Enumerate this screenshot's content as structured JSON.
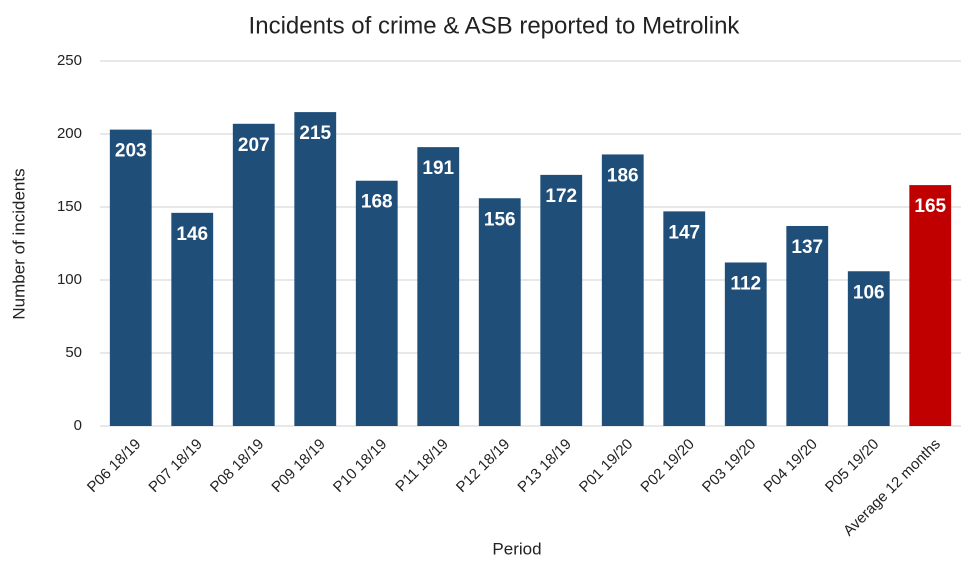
{
  "chart_data": {
    "type": "bar",
    "title": "Incidents of crime & ASB reported to Metrolink",
    "x_label": "Period",
    "y_label": "Number of incidents",
    "categories": [
      "P06 18/19",
      "P07 18/19",
      "P08 18/19",
      "P09 18/19",
      "P10 18/19",
      "P11 18/19",
      "P12 18/19",
      "P13 18/19",
      "P01 19/20",
      "P02 19/20",
      "P03 19/20",
      "P04 19/20",
      "P05 19/20",
      "Average 12 months"
    ],
    "values": [
      203,
      146,
      207,
      215,
      168,
      191,
      156,
      172,
      186,
      147,
      112,
      137,
      106,
      165
    ],
    "colors": [
      "#1f4e79",
      "#1f4e79",
      "#1f4e79",
      "#1f4e79",
      "#1f4e79",
      "#1f4e79",
      "#1f4e79",
      "#1f4e79",
      "#1f4e79",
      "#1f4e79",
      "#1f4e79",
      "#1f4e79",
      "#1f4e79",
      "#c00000"
    ],
    "ylim": [
      0,
      250
    ],
    "yticks": [
      0,
      50,
      100,
      150,
      200,
      250
    ],
    "grid": true
  }
}
